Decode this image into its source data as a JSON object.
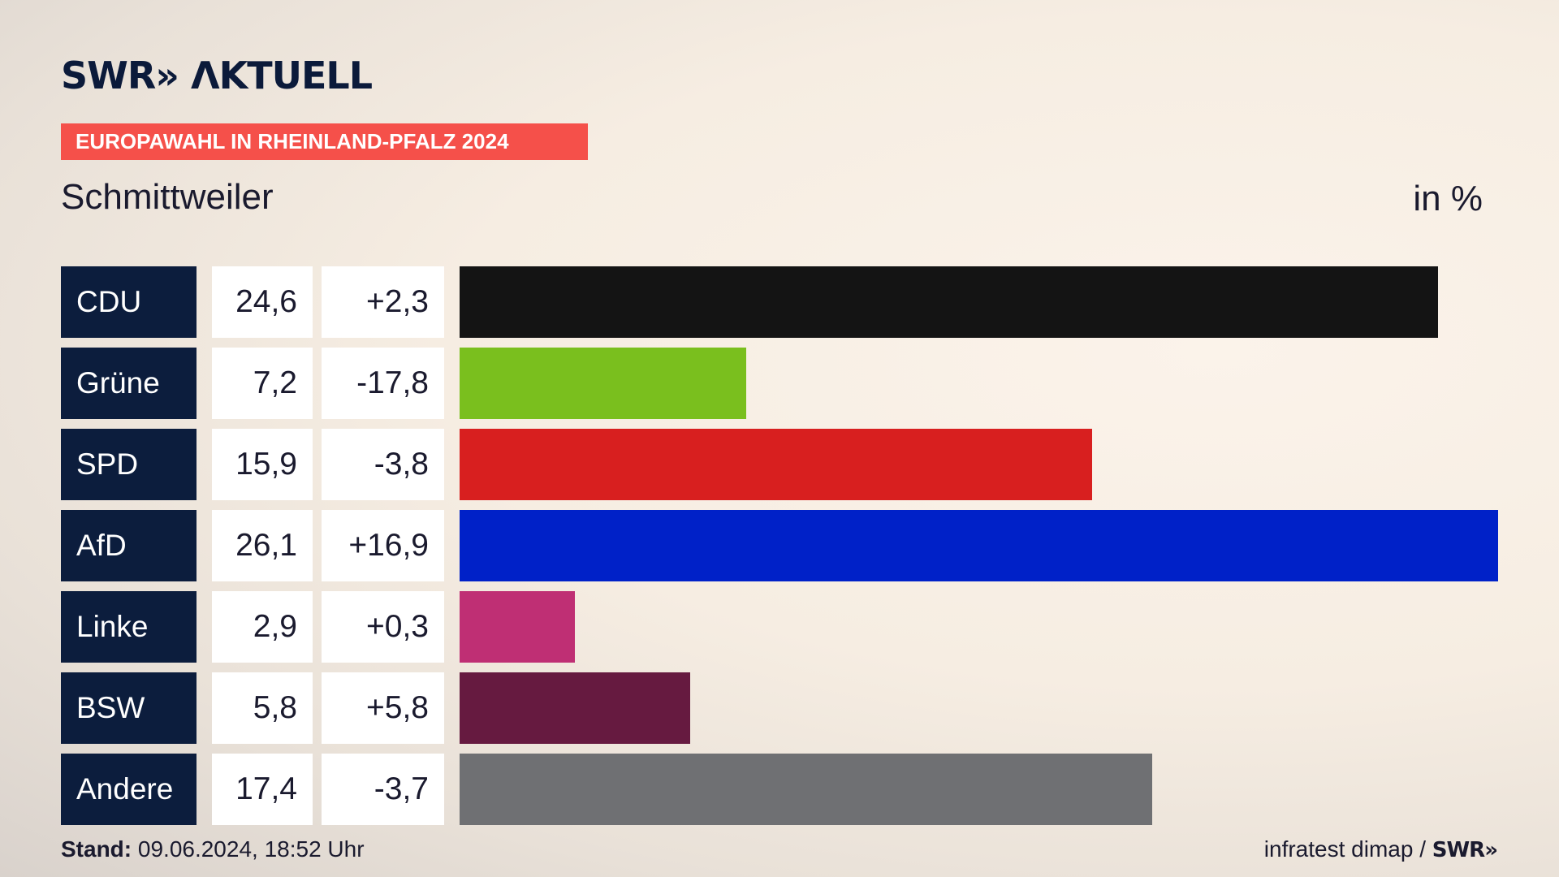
{
  "header": {
    "logo": "SWR» ΛKTUELL",
    "banner": "EUROPAWAHL IN RHEINLAND-PFALZ 2024",
    "place": "Schmittweiler",
    "unit": "in %"
  },
  "chart_data": {
    "type": "bar",
    "orientation": "horizontal",
    "categories": [
      "CDU",
      "Grüne",
      "SPD",
      "AfD",
      "Linke",
      "BSW",
      "Andere"
    ],
    "values": [
      24.6,
      7.2,
      15.9,
      26.1,
      2.9,
      5.8,
      17.4
    ],
    "value_labels": [
      "24,6",
      "7,2",
      "15,9",
      "26,1",
      "2,9",
      "5,8",
      "17,4"
    ],
    "diff_labels": [
      "+2,3",
      "-17,8",
      "-3,8",
      "+16,9",
      "+0,3",
      "+5,8",
      "-3,7"
    ],
    "colors": [
      "#141414",
      "#7abf1e",
      "#d81f1f",
      "#0021c8",
      "#bf2f74",
      "#661a40",
      "#6f7073"
    ],
    "xlim": [
      0,
      26.1
    ],
    "grid": false,
    "legend": "none"
  },
  "footer": {
    "stand_label": "Stand:",
    "stand_value": "09.06.2024, 18:52 Uhr",
    "source": "infratest dimap /",
    "source_logo": "SWR»"
  },
  "colors": {
    "banner": "#f5504a",
    "party_box": "#0c1d3d",
    "text": "#0b1a3a"
  }
}
